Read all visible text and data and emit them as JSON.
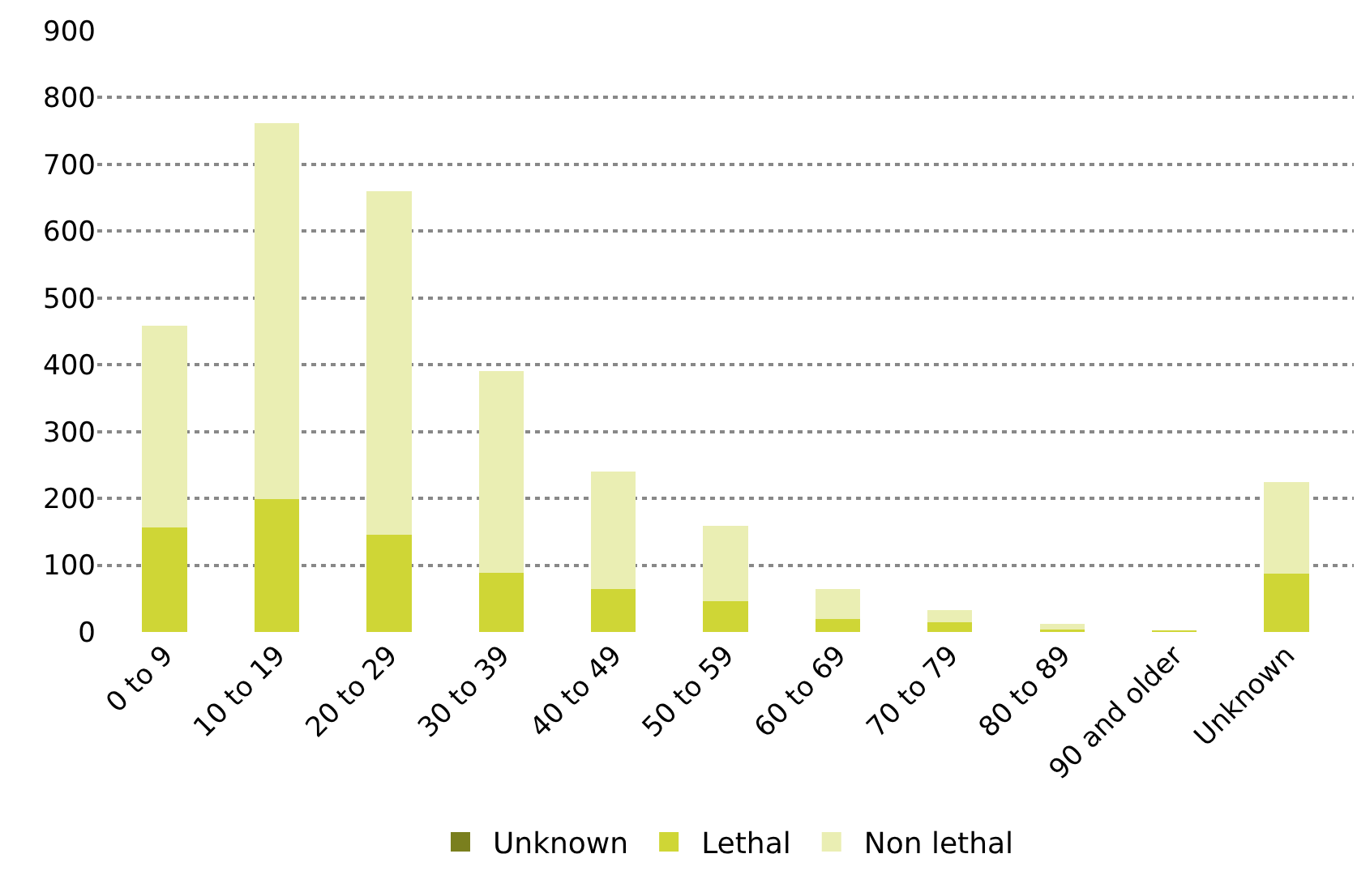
{
  "chart_data": {
    "type": "bar",
    "stacked": true,
    "categories": [
      "0 to 9",
      "10 to 19",
      "20 to 29",
      "30 to 39",
      "40 to 49",
      "50 to 59",
      "60 to 69",
      "70 to 79",
      "80 to 89",
      "90 and older",
      "Unknown"
    ],
    "series": [
      {
        "name": "Unknown",
        "color": "#7a7f1e",
        "values": [
          0,
          0,
          0,
          0,
          0,
          0,
          0,
          0,
          0,
          0,
          0
        ]
      },
      {
        "name": "Lethal",
        "color": "#cfd636",
        "values": [
          157,
          199,
          145,
          89,
          64,
          46,
          20,
          14,
          4,
          2,
          87
        ]
      },
      {
        "name": "Non lethal",
        "color": "#eaeeb3",
        "values": [
          301,
          563,
          515,
          302,
          176,
          113,
          44,
          19,
          8,
          0,
          138
        ]
      }
    ],
    "ylim": [
      0,
      900
    ],
    "yticks": [
      0,
      100,
      200,
      300,
      400,
      500,
      600,
      700,
      800,
      900
    ],
    "grid": "y",
    "legend": "bottom"
  }
}
